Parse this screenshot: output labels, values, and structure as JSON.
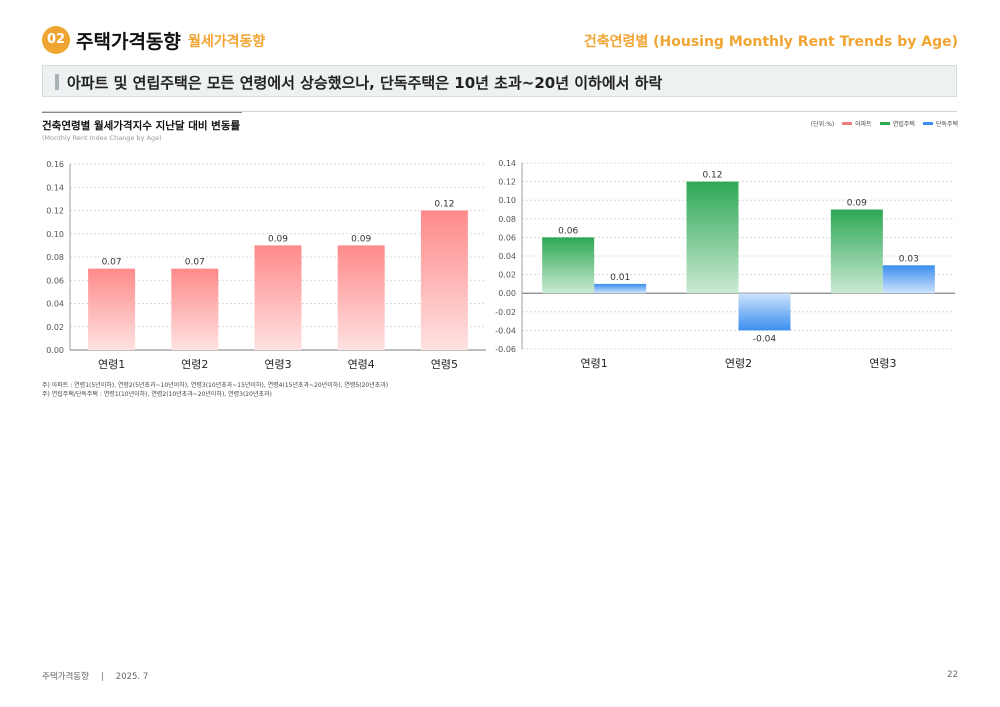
{
  "header": {
    "number": "02",
    "title": "주택가격동향",
    "subtitle": "월세가격동향",
    "section": "건축연령별 (Housing Monthly Rent Trends by Age)"
  },
  "headline": "아파트 및 연립주택은 모든 연령에서 상승했으나, 단독주택은 10년 초과~20년 이하에서 하락",
  "chart_header": {
    "title": "건축연령별 월세가격지수 지난달 대비 변동률",
    "subtitle": "(Monthly Rent Index Change by Age)"
  },
  "legend": {
    "unit": "(단위:%)",
    "items": [
      {
        "label": "아파트",
        "color": "#f08080"
      },
      {
        "label": "연립주택",
        "color": "#2da854"
      },
      {
        "label": "단독주택",
        "color": "#3a8ef0"
      }
    ]
  },
  "chart_data": [
    {
      "type": "bar",
      "categories": [
        "연령1",
        "연령2",
        "연령3",
        "연령4",
        "연령5"
      ],
      "series": [
        {
          "name": "아파트",
          "values": [
            0.07,
            0.07,
            0.09,
            0.09,
            0.12
          ],
          "color": "#ff8a8a"
        }
      ],
      "value_labels": [
        "0.07",
        "0.07",
        "0.09",
        "0.09",
        "0.12"
      ],
      "ylim": [
        0,
        0.16
      ],
      "yticks": [
        0,
        0.02,
        0.04,
        0.06,
        0.08,
        0.1,
        0.12,
        0.14,
        0.16
      ],
      "ytick_labels": [
        "0.00",
        "0.02",
        "0.04",
        "0.06",
        "0.08",
        "0.10",
        "0.12",
        "0.14",
        "0.16"
      ],
      "grid": true
    },
    {
      "type": "bar",
      "categories": [
        "연령1",
        "연령2",
        "연령3"
      ],
      "series": [
        {
          "name": "연립주택",
          "values": [
            0.06,
            0.12,
            0.09
          ],
          "color": "#2da854"
        },
        {
          "name": "단독주택",
          "values": [
            0.01,
            -0.04,
            0.03
          ],
          "color": "#3a8ef0"
        }
      ],
      "value_labels": [
        [
          "0.06",
          "0.12",
          "0.09"
        ],
        [
          "0.01",
          "-0.04",
          "0.03"
        ]
      ],
      "ylim": [
        -0.06,
        0.14
      ],
      "yticks": [
        -0.06,
        -0.04,
        -0.02,
        0,
        0.02,
        0.04,
        0.06,
        0.08,
        0.1,
        0.12,
        0.14
      ],
      "ytick_labels": [
        "-0.06",
        "-0.04",
        "-0.02",
        "0.00",
        "0.02",
        "0.04",
        "0.06",
        "0.08",
        "0.10",
        "0.12",
        "0.14"
      ],
      "grid": true
    }
  ],
  "notes": [
    "주) 아파트 : 연령1(5년이하), 연령2(5년초과~10년이하), 연령3(10년초과~15년이하), 연령4(15년초과~20년이하), 연령5(20년초과)",
    "주) 연립주택/단독주택 : 연령1(10년이하), 연령2(10년초과~20년이하), 연령3(20년초과)"
  ],
  "footer": {
    "name": "주택가격동향",
    "date": "2025. 7",
    "page": "22"
  }
}
